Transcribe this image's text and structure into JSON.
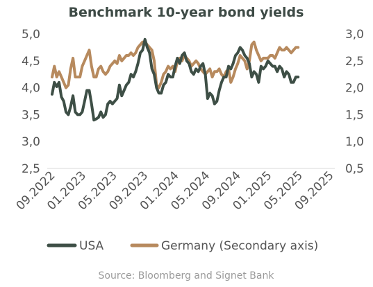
{
  "chart_data": {
    "type": "line",
    "title": "Benchmark 10-year bond yields",
    "source": "Source: Bloomberg and Signet Bank",
    "x_tick_labels": [
      "09.2022",
      "01.2023",
      "05.2023",
      "09.2023",
      "01.2024",
      "05.2024",
      "09.2024",
      "01.2025",
      "05.2025",
      "09.2025"
    ],
    "y_left": {
      "ticks": [
        "5,0",
        "4,5",
        "4,0",
        "3,5",
        "3,0",
        "2,5"
      ],
      "range": [
        2.5,
        5.0
      ]
    },
    "y_right": {
      "ticks": [
        "3,0",
        "2,5",
        "2,0",
        "1,5",
        "1,0",
        "0,5"
      ],
      "range": [
        0.5,
        3.0
      ]
    },
    "x_range": [
      0,
      36
    ],
    "grid": false,
    "legend_position": "bottom",
    "series": [
      {
        "name": "USA",
        "axis": "left",
        "color": "#3e4f46",
        "points": [
          [
            0.0,
            3.88
          ],
          [
            0.3,
            4.1
          ],
          [
            0.6,
            4.02
          ],
          [
            0.9,
            4.1
          ],
          [
            1.2,
            3.83
          ],
          [
            1.5,
            3.75
          ],
          [
            1.8,
            3.55
          ],
          [
            2.1,
            3.5
          ],
          [
            2.4,
            3.65
          ],
          [
            2.7,
            3.85
          ],
          [
            3.0,
            3.55
          ],
          [
            3.3,
            3.5
          ],
          [
            3.6,
            3.5
          ],
          [
            3.9,
            3.55
          ],
          [
            4.2,
            3.75
          ],
          [
            4.5,
            3.95
          ],
          [
            4.8,
            3.95
          ],
          [
            5.1,
            3.7
          ],
          [
            5.4,
            3.4
          ],
          [
            5.7,
            3.42
          ],
          [
            6.0,
            3.45
          ],
          [
            6.3,
            3.55
          ],
          [
            6.6,
            3.45
          ],
          [
            6.9,
            3.5
          ],
          [
            7.2,
            3.7
          ],
          [
            7.5,
            3.75
          ],
          [
            7.8,
            3.7
          ],
          [
            8.1,
            3.75
          ],
          [
            8.4,
            3.8
          ],
          [
            8.7,
            4.05
          ],
          [
            9.0,
            3.85
          ],
          [
            9.3,
            3.95
          ],
          [
            9.6,
            4.05
          ],
          [
            9.9,
            4.1
          ],
          [
            10.2,
            4.25
          ],
          [
            10.5,
            4.2
          ],
          [
            10.8,
            4.3
          ],
          [
            11.1,
            4.45
          ],
          [
            11.4,
            4.65
          ],
          [
            11.7,
            4.7
          ],
          [
            12.0,
            4.9
          ],
          [
            12.3,
            4.75
          ],
          [
            12.6,
            4.65
          ],
          [
            12.9,
            4.35
          ],
          [
            13.2,
            4.25
          ],
          [
            13.5,
            4.0
          ],
          [
            13.8,
            3.9
          ],
          [
            14.1,
            3.9
          ],
          [
            14.4,
            4.05
          ],
          [
            14.7,
            4.1
          ],
          [
            15.0,
            4.25
          ],
          [
            15.3,
            4.2
          ],
          [
            15.6,
            4.2
          ],
          [
            15.9,
            4.4
          ],
          [
            16.2,
            4.55
          ],
          [
            16.5,
            4.45
          ],
          [
            16.8,
            4.6
          ],
          [
            17.1,
            4.65
          ],
          [
            17.4,
            4.5
          ],
          [
            17.7,
            4.45
          ],
          [
            18.0,
            4.3
          ],
          [
            18.3,
            4.25
          ],
          [
            18.6,
            4.35
          ],
          [
            18.9,
            4.3
          ],
          [
            19.2,
            4.4
          ],
          [
            19.5,
            4.45
          ],
          [
            19.8,
            4.25
          ],
          [
            20.1,
            3.8
          ],
          [
            20.4,
            3.9
          ],
          [
            20.7,
            3.85
          ],
          [
            21.0,
            3.7
          ],
          [
            21.3,
            3.75
          ],
          [
            21.6,
            3.95
          ],
          [
            21.9,
            4.1
          ],
          [
            22.2,
            4.2
          ],
          [
            22.5,
            4.2
          ],
          [
            22.8,
            4.4
          ],
          [
            23.1,
            4.35
          ],
          [
            23.4,
            4.45
          ],
          [
            23.7,
            4.6
          ],
          [
            24.0,
            4.65
          ],
          [
            24.3,
            4.75
          ],
          [
            24.6,
            4.7
          ],
          [
            24.9,
            4.6
          ],
          [
            25.2,
            4.55
          ],
          [
            25.5,
            4.45
          ],
          [
            25.8,
            4.2
          ],
          [
            26.1,
            4.3
          ],
          [
            26.4,
            4.25
          ],
          [
            26.7,
            4.1
          ],
          [
            27.0,
            4.4
          ],
          [
            27.3,
            4.35
          ],
          [
            27.6,
            4.4
          ],
          [
            27.9,
            4.5
          ],
          [
            28.2,
            4.45
          ],
          [
            28.5,
            4.4
          ],
          [
            28.8,
            4.4
          ],
          [
            29.1,
            4.3
          ],
          [
            29.4,
            4.4
          ],
          [
            29.7,
            4.35
          ],
          [
            30.0,
            4.2
          ],
          [
            30.3,
            4.3
          ],
          [
            30.6,
            4.25
          ],
          [
            30.9,
            4.1
          ],
          [
            31.2,
            4.1
          ],
          [
            31.5,
            4.2
          ],
          [
            31.8,
            4.2
          ]
        ]
      },
      {
        "name": "Germany (Secondary axis)",
        "axis": "right",
        "color": "#b78a5e",
        "points": [
          [
            0.0,
            2.2
          ],
          [
            0.3,
            2.4
          ],
          [
            0.6,
            2.2
          ],
          [
            0.9,
            2.3
          ],
          [
            1.2,
            2.2
          ],
          [
            1.5,
            2.1
          ],
          [
            1.8,
            2.0
          ],
          [
            2.1,
            2.05
          ],
          [
            2.4,
            2.35
          ],
          [
            2.7,
            2.55
          ],
          [
            3.0,
            2.2
          ],
          [
            3.3,
            2.2
          ],
          [
            3.6,
            2.2
          ],
          [
            3.9,
            2.4
          ],
          [
            4.2,
            2.5
          ],
          [
            4.5,
            2.6
          ],
          [
            4.8,
            2.7
          ],
          [
            5.1,
            2.4
          ],
          [
            5.4,
            2.2
          ],
          [
            5.7,
            2.2
          ],
          [
            6.0,
            2.35
          ],
          [
            6.3,
            2.4
          ],
          [
            6.6,
            2.3
          ],
          [
            6.9,
            2.25
          ],
          [
            7.2,
            2.3
          ],
          [
            7.5,
            2.4
          ],
          [
            7.8,
            2.45
          ],
          [
            8.1,
            2.5
          ],
          [
            8.4,
            2.45
          ],
          [
            8.7,
            2.6
          ],
          [
            9.0,
            2.5
          ],
          [
            9.3,
            2.55
          ],
          [
            9.6,
            2.6
          ],
          [
            9.9,
            2.6
          ],
          [
            10.2,
            2.65
          ],
          [
            10.5,
            2.6
          ],
          [
            10.8,
            2.65
          ],
          [
            11.1,
            2.75
          ],
          [
            11.4,
            2.8
          ],
          [
            11.7,
            2.85
          ],
          [
            12.0,
            2.85
          ],
          [
            12.3,
            2.8
          ],
          [
            12.6,
            2.75
          ],
          [
            12.9,
            2.7
          ],
          [
            13.2,
            2.5
          ],
          [
            13.5,
            2.05
          ],
          [
            13.8,
            2.0
          ],
          [
            14.1,
            2.1
          ],
          [
            14.4,
            2.25
          ],
          [
            14.7,
            2.3
          ],
          [
            15.0,
            2.4
          ],
          [
            15.3,
            2.35
          ],
          [
            15.6,
            2.4
          ],
          [
            15.9,
            2.3
          ],
          [
            16.2,
            2.5
          ],
          [
            16.5,
            2.55
          ],
          [
            16.8,
            2.5
          ],
          [
            17.1,
            2.6
          ],
          [
            17.4,
            2.55
          ],
          [
            17.7,
            2.5
          ],
          [
            18.0,
            2.4
          ],
          [
            18.3,
            2.45
          ],
          [
            18.6,
            2.5
          ],
          [
            18.9,
            2.45
          ],
          [
            19.2,
            2.35
          ],
          [
            19.5,
            2.3
          ],
          [
            19.8,
            2.25
          ],
          [
            20.1,
            2.3
          ],
          [
            20.4,
            2.35
          ],
          [
            20.7,
            2.2
          ],
          [
            21.0,
            2.3
          ],
          [
            21.3,
            2.3
          ],
          [
            21.6,
            2.35
          ],
          [
            21.9,
            2.25
          ],
          [
            22.2,
            2.2
          ],
          [
            22.5,
            2.3
          ],
          [
            22.8,
            2.35
          ],
          [
            23.1,
            2.1
          ],
          [
            23.4,
            2.2
          ],
          [
            23.7,
            2.35
          ],
          [
            24.0,
            2.45
          ],
          [
            24.3,
            2.6
          ],
          [
            24.6,
            2.55
          ],
          [
            24.9,
            2.5
          ],
          [
            25.2,
            2.35
          ],
          [
            25.5,
            2.5
          ],
          [
            25.8,
            2.8
          ],
          [
            26.1,
            2.85
          ],
          [
            26.4,
            2.7
          ],
          [
            26.7,
            2.6
          ],
          [
            27.0,
            2.5
          ],
          [
            27.3,
            2.55
          ],
          [
            27.6,
            2.55
          ],
          [
            27.9,
            2.55
          ],
          [
            28.2,
            2.6
          ],
          [
            28.5,
            2.6
          ],
          [
            28.8,
            2.55
          ],
          [
            29.1,
            2.65
          ],
          [
            29.4,
            2.75
          ],
          [
            29.7,
            2.7
          ],
          [
            30.0,
            2.7
          ],
          [
            30.3,
            2.75
          ],
          [
            30.6,
            2.7
          ],
          [
            30.9,
            2.65
          ],
          [
            31.2,
            2.7
          ],
          [
            31.5,
            2.75
          ],
          [
            31.8,
            2.75
          ]
        ]
      }
    ]
  }
}
